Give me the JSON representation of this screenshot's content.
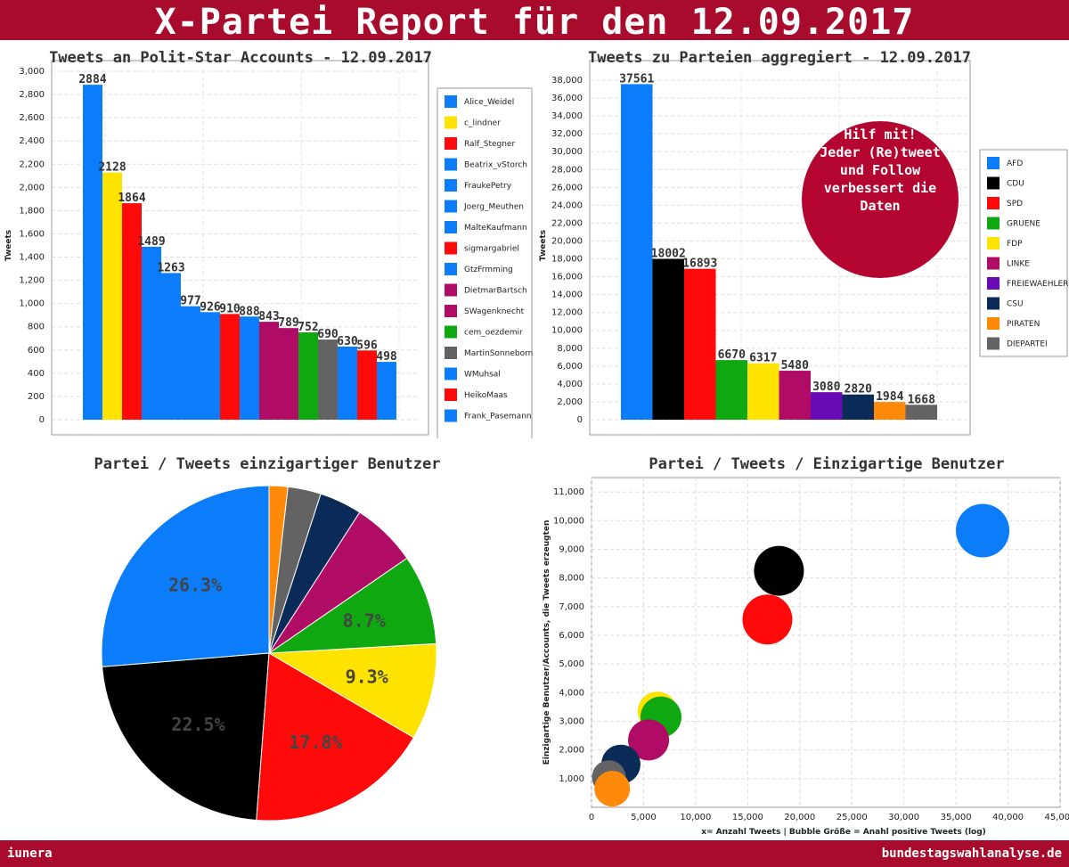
{
  "header": {
    "title": "X-Partei Report für den 12.09.2017"
  },
  "footer": {
    "left": "iunera",
    "right": "bundestagswahlanalyse.de"
  },
  "callout": {
    "lines": [
      "Hilf mit!",
      "Jeder (Re)tweet",
      "und Follow",
      "verbessert die",
      "Daten"
    ],
    "color": "#b3052f"
  },
  "chart_data": [
    {
      "type": "bar",
      "title": "Tweets an Polit-Star Accounts - 12.09.2017",
      "ylabel": "Tweets",
      "ylim": [
        0,
        3000
      ],
      "yticks": [
        "0",
        "200",
        "400",
        "600",
        "800",
        "1,000",
        "1,200",
        "1,400",
        "1,600",
        "1,800",
        "2,000",
        "2,200",
        "2,400",
        "2,600",
        "2,800",
        "3,000"
      ],
      "grid": true,
      "legend_position": "right",
      "categories": [
        "Alice_Weidel",
        "c_lindner",
        "Ralf_Stegner",
        "Beatrix_vStorch",
        "FraukePetry",
        "Joerg_Meuthen",
        "MalteKaufmann",
        "sigmargabriel",
        "GtzFrmming",
        "DietmarBartsch",
        "SWagenknecht",
        "cem_oezdemir",
        "MartinSonneborn",
        "WMuhsal",
        "HeikoMaas",
        "Frank_Pasemann"
      ],
      "values": [
        2884,
        2128,
        1864,
        1489,
        1263,
        977,
        926,
        910,
        888,
        843,
        789,
        752,
        690,
        630,
        596,
        498
      ],
      "colors": [
        "#0b7dfa",
        "#ffe300",
        "#ff0a0a",
        "#0b7dfa",
        "#0b7dfa",
        "#0b7dfa",
        "#0b7dfa",
        "#ff0a0a",
        "#0b7dfa",
        "#b00c66",
        "#b00c66",
        "#10a810",
        "#636363",
        "#0b7dfa",
        "#ff0a0a",
        "#0b7dfa"
      ]
    },
    {
      "type": "bar",
      "title": "Tweets zu Parteien aggregiert - 12.09.2017",
      "ylabel": "Tweets",
      "ylim": [
        0,
        39000
      ],
      "yticks": [
        "0",
        "2,000",
        "4,000",
        "6,000",
        "8,000",
        "10,000",
        "12,000",
        "14,000",
        "16,000",
        "18,000",
        "20,000",
        "22,000",
        "24,000",
        "26,000",
        "28,000",
        "30,000",
        "32,000",
        "34,000",
        "36,000",
        "38,000"
      ],
      "grid": true,
      "legend_position": "right",
      "categories": [
        "AFD",
        "CDU",
        "SPD",
        "GRUENE",
        "FDP",
        "LINKE",
        "FREIEWAEHLER",
        "CSU",
        "PIRATEN",
        "DIEPARTEI"
      ],
      "values": [
        37561,
        18002,
        16893,
        6670,
        6317,
        5480,
        3080,
        2820,
        1984,
        1668
      ],
      "colors": [
        "#0b7dfa",
        "#000000",
        "#ff0a0a",
        "#10a810",
        "#ffe300",
        "#b00c66",
        "#6a0ab5",
        "#0a2a57",
        "#ff8a0a",
        "#636363"
      ]
    },
    {
      "type": "pie",
      "title": "Partei / Tweets einzigartiger Benutzer",
      "slices": [
        {
          "name": "AFD",
          "value": 26.3,
          "label": "26.3%",
          "color": "#0b7dfa"
        },
        {
          "name": "CDU",
          "value": 22.5,
          "label": "22.5%",
          "color": "#000000"
        },
        {
          "name": "SPD",
          "value": 17.8,
          "label": "17.8%",
          "color": "#ff0a0a"
        },
        {
          "name": "FDP",
          "value": 9.3,
          "label": "9.3%",
          "color": "#ffe300"
        },
        {
          "name": "GRUENE",
          "value": 8.7,
          "label": "8.7%",
          "color": "#10a810"
        },
        {
          "name": "LINKE",
          "value": 6.3,
          "label": "",
          "color": "#b00c66"
        },
        {
          "name": "CSU",
          "value": 4.1,
          "label": "",
          "color": "#0a2a57"
        },
        {
          "name": "DIEPARTEI",
          "value": 3.2,
          "label": "",
          "color": "#636363"
        },
        {
          "name": "PIRATEN",
          "value": 1.8,
          "label": "",
          "color": "#ff8a0a"
        }
      ]
    },
    {
      "type": "scatter",
      "title": "Partei / Tweets / Einzigartige Benutzer",
      "xlabel": "x= Anzahl Tweets | Bubble Größe = Anahl positive Tweets (log)",
      "ylabel": "Einzigartige Benutzer/Accounts, die Tweets erzeugten",
      "xlim": [
        0,
        45000
      ],
      "ylim": [
        0,
        11500
      ],
      "xticks": [
        "0",
        "5,000",
        "10,000",
        "15,000",
        "20,000",
        "25,000",
        "30,000",
        "35,000",
        "40,000",
        "45,000"
      ],
      "yticks": [
        "1,000",
        "2,000",
        "3,000",
        "4,000",
        "5,000",
        "6,000",
        "7,000",
        "8,000",
        "9,000",
        "10,000",
        "11,000"
      ],
      "grid": true,
      "points": [
        {
          "name": "AFD",
          "x": 37561,
          "y": 9650,
          "color": "#0b7dfa"
        },
        {
          "name": "CDU",
          "x": 18002,
          "y": 8250,
          "color": "#000000"
        },
        {
          "name": "SPD",
          "x": 16893,
          "y": 6550,
          "color": "#ff0a0a"
        },
        {
          "name": "FDP",
          "x": 6317,
          "y": 3350,
          "color": "#ffe300"
        },
        {
          "name": "GRUENE",
          "x": 6670,
          "y": 3150,
          "color": "#10a810"
        },
        {
          "name": "LINKE",
          "x": 5480,
          "y": 2350,
          "color": "#b00c66"
        },
        {
          "name": "CSU",
          "x": 2820,
          "y": 1500,
          "color": "#0a2a57"
        },
        {
          "name": "DIEPARTEI",
          "x": 1668,
          "y": 1050,
          "color": "#636363"
        },
        {
          "name": "PIRATEN",
          "x": 1984,
          "y": 650,
          "color": "#ff8a0a"
        }
      ]
    }
  ]
}
